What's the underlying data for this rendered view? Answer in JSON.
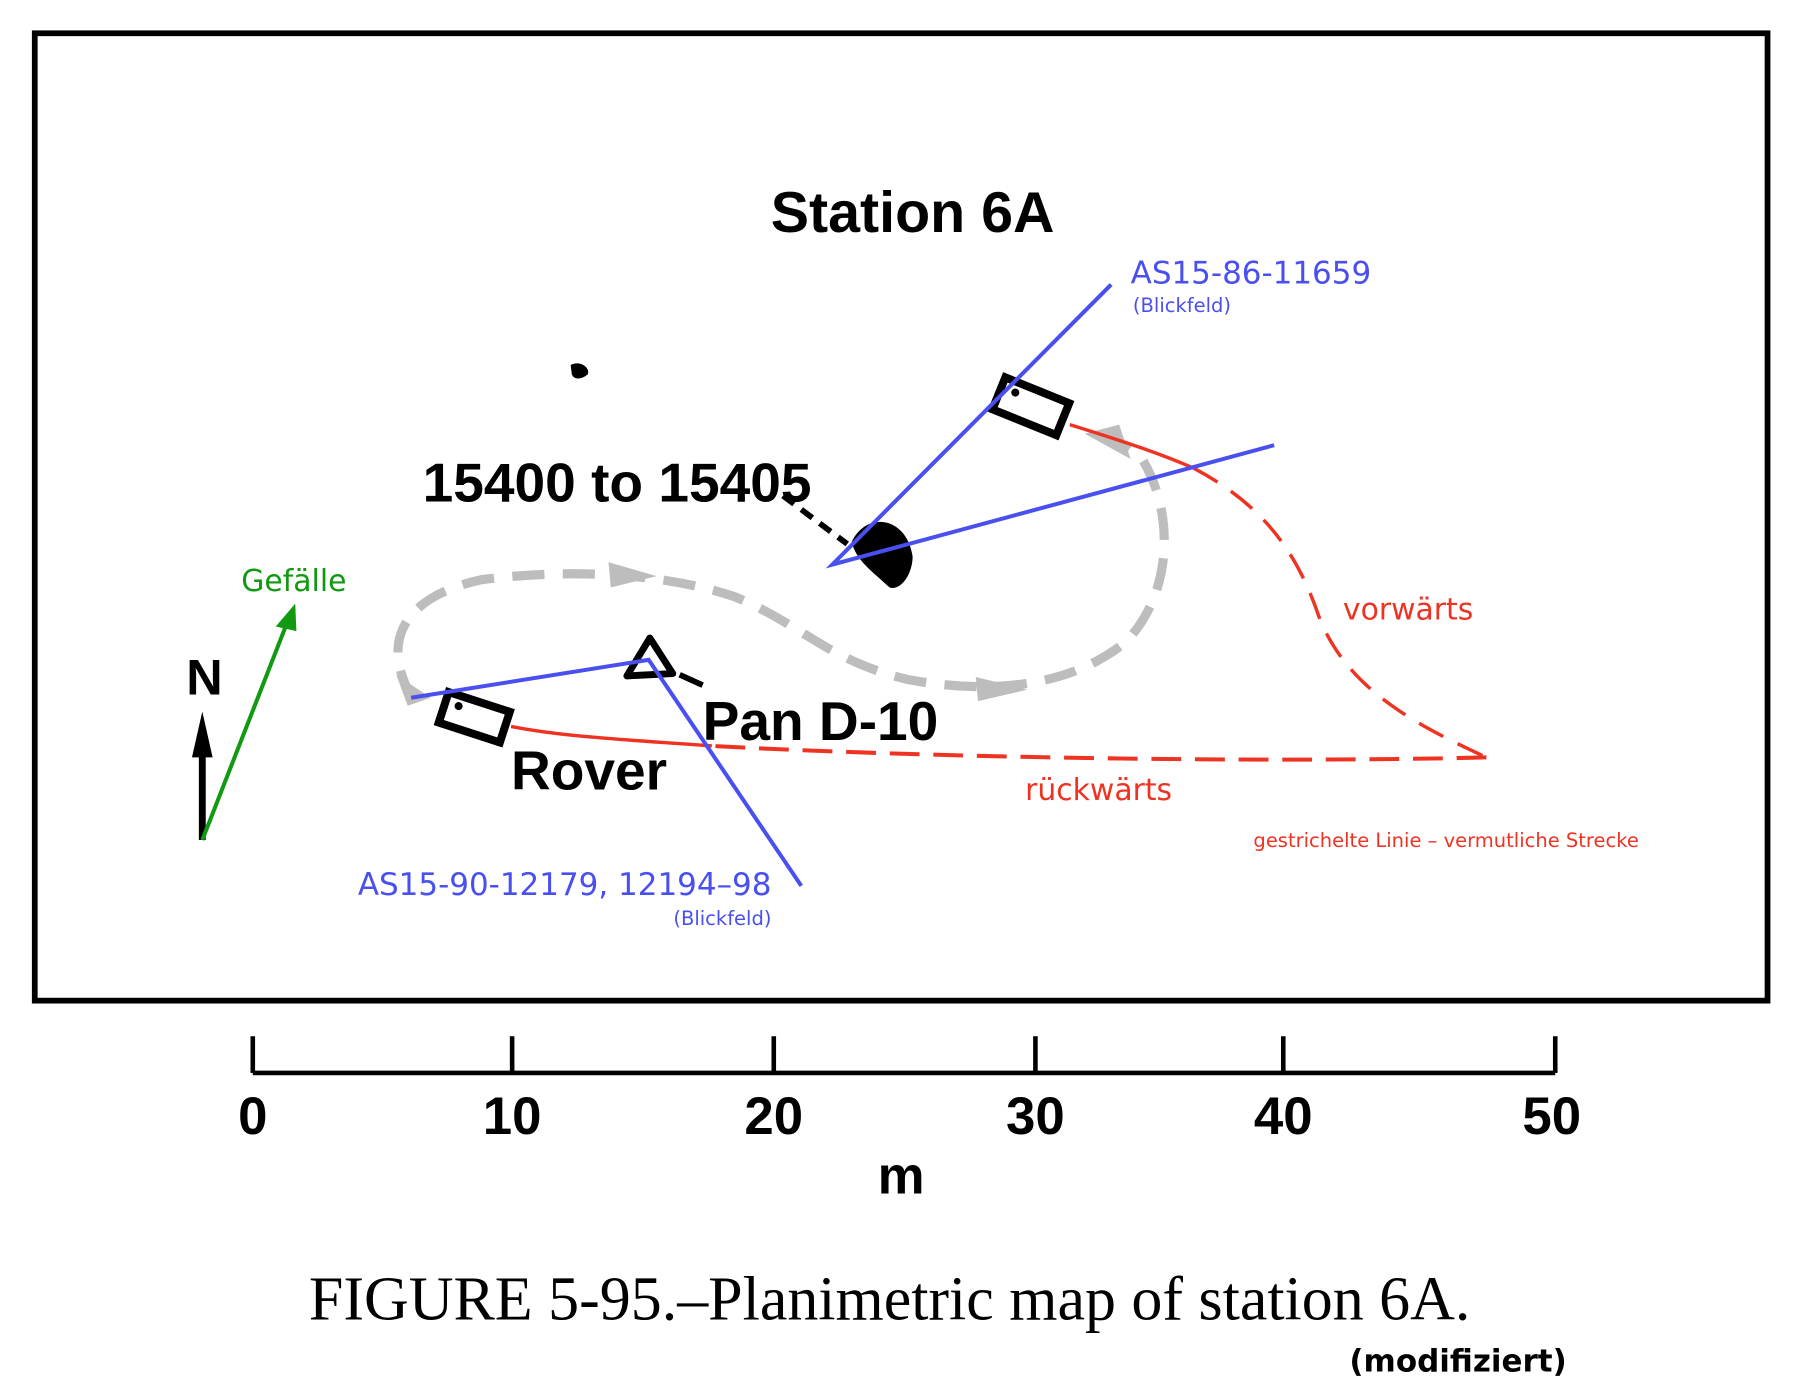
{
  "title": "Station 6A",
  "sample_label": "15400 to 15405",
  "pan_label": "Pan D-10",
  "rover_label": "Rover",
  "north_label": "N",
  "slope_label": "Gefälle",
  "photo_upper": {
    "id": "AS15-86-11659",
    "note": "(Blickfeld)"
  },
  "photo_lower": {
    "id": "AS15-90-12179, 12194–98",
    "note": "(Blickfeld)"
  },
  "forward_label": "vorwärts",
  "backward_label": "rückwärts",
  "legend_dashed": "gestrichelte Linie – vermutliche Strecke",
  "scale": {
    "ticks": [
      "0",
      "10",
      "20",
      "30",
      "40",
      "50"
    ],
    "unit": "m"
  },
  "caption": "FIGURE 5-95.–Planimetric map of station 6A.",
  "caption_note": "(modifiziert)",
  "colors": {
    "blue": "#4a4ff0",
    "red": "#ee3322",
    "green": "#119911",
    "gray": "#bdbdbd",
    "black": "#000000"
  }
}
